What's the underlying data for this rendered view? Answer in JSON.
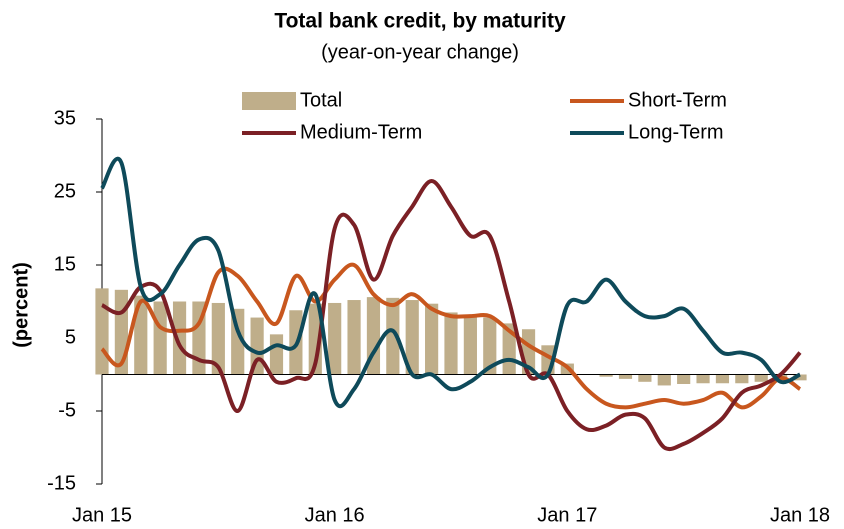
{
  "chart_data": {
    "type": "combo",
    "title": "Total bank credit, by maturity",
    "subtitle": "(year-on-year change)",
    "y_label": "(percent)",
    "categories": [
      "Jan 15",
      null,
      null,
      null,
      null,
      null,
      null,
      null,
      null,
      null,
      null,
      null,
      "Jan 16",
      null,
      null,
      null,
      null,
      null,
      null,
      null,
      null,
      null,
      null,
      null,
      "Jan 17",
      null,
      null,
      null,
      null,
      null,
      null,
      null,
      null,
      null,
      null,
      null,
      "Jan 18"
    ],
    "ylim": [
      -15,
      35
    ],
    "yticks": [
      -15,
      -5,
      5,
      15,
      25,
      35
    ],
    "grid": false,
    "series": [
      {
        "name": "Total",
        "type": "bar",
        "color": "#bfae8a",
        "values": [
          11.8,
          11.6,
          10.8,
          10,
          10,
          10,
          9.8,
          9,
          7.8,
          5.5,
          8.8,
          9.7,
          9.8,
          10.2,
          10.6,
          10.5,
          10.2,
          9.7,
          8.5,
          8,
          7.8,
          7,
          6.2,
          4,
          1.5,
          0,
          -0.3,
          -0.6,
          -1,
          -1.5,
          -1.3,
          -1.2,
          -1.2,
          -1.2,
          -1,
          -0.8,
          -0.8
        ]
      },
      {
        "name": "Short-Term",
        "type": "line",
        "color": "#c8571e",
        "values": [
          3.5,
          1.5,
          10,
          6.5,
          6,
          7,
          14,
          13.5,
          10,
          7,
          13.5,
          10,
          13,
          15,
          11,
          9.5,
          11,
          9,
          8,
          8,
          8,
          6,
          4,
          2.5,
          1,
          -2,
          -4,
          -4.5,
          -4,
          -3.5,
          -4,
          -3.5,
          -2.5,
          -4.5,
          -3,
          -0.5,
          -2
        ]
      },
      {
        "name": "Medium-Term",
        "type": "line",
        "color": "#7b2025",
        "values": [
          9.5,
          8.5,
          12,
          11.5,
          4,
          2,
          1,
          -5,
          2,
          -1,
          -0.5,
          1.5,
          20,
          20.5,
          13,
          19,
          23,
          26.5,
          23,
          19,
          19,
          10,
          0,
          0,
          -5,
          -7.5,
          -7,
          -5.5,
          -6,
          -10,
          -9.5,
          -8,
          -6,
          -2.5,
          -1.5,
          0,
          3
        ]
      },
      {
        "name": "Long-Term",
        "type": "line",
        "color": "#0e4a5a",
        "values": [
          25.5,
          29,
          12,
          11,
          15,
          18.5,
          17,
          6,
          3,
          4,
          4,
          11,
          -3.5,
          -2,
          3,
          6,
          0,
          0,
          -2,
          -1,
          1,
          2,
          1,
          0,
          9.5,
          10,
          13,
          10,
          8,
          8,
          9,
          6,
          3,
          3,
          2,
          -1,
          0
        ]
      }
    ]
  }
}
